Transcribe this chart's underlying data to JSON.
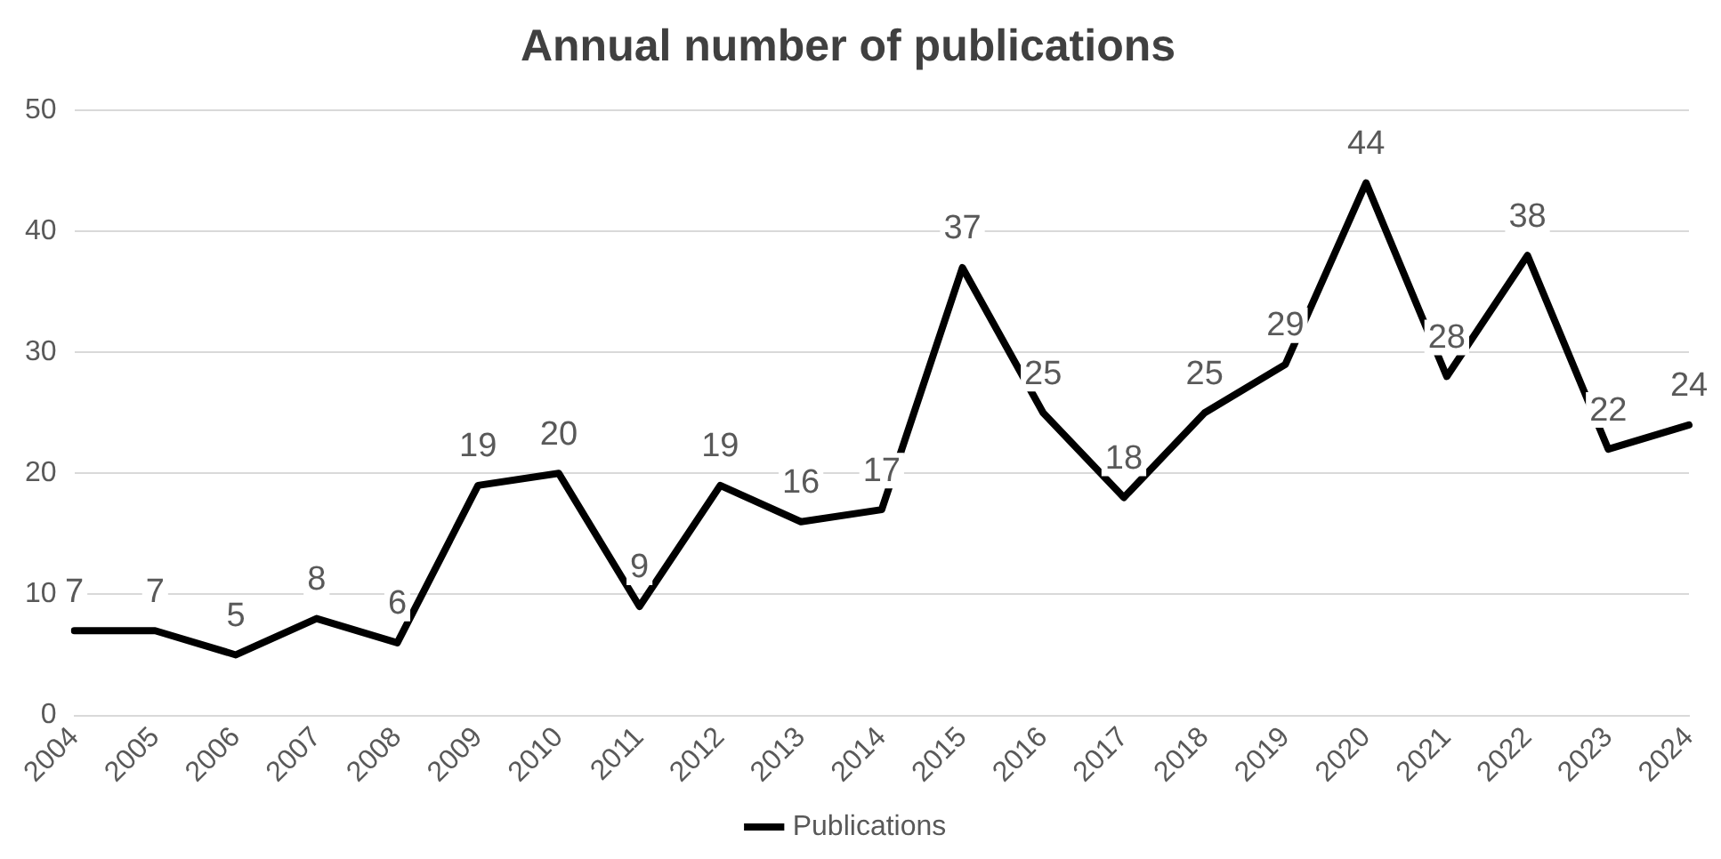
{
  "chart_data": {
    "type": "line",
    "title": "Annual number of publications",
    "categories": [
      "2004",
      "2005",
      "2006",
      "2007",
      "2008",
      "2009",
      "2010",
      "2011",
      "2012",
      "2013",
      "2014",
      "2015",
      "2016",
      "2017",
      "2018",
      "2019",
      "2020",
      "2021",
      "2022",
      "2023",
      "2024"
    ],
    "series": [
      {
        "name": "Publications",
        "color": "#000000",
        "values": [
          7,
          7,
          5,
          8,
          6,
          19,
          20,
          9,
          19,
          16,
          17,
          37,
          25,
          18,
          25,
          29,
          44,
          28,
          38,
          22,
          24
        ]
      }
    ],
    "ylim": [
      0,
      50
    ],
    "yticks": [
      0,
      10,
      20,
      30,
      40,
      50
    ],
    "grid": "y",
    "legend": "bottom",
    "data_labels": true,
    "marker": "none",
    "line_style": "solid"
  }
}
